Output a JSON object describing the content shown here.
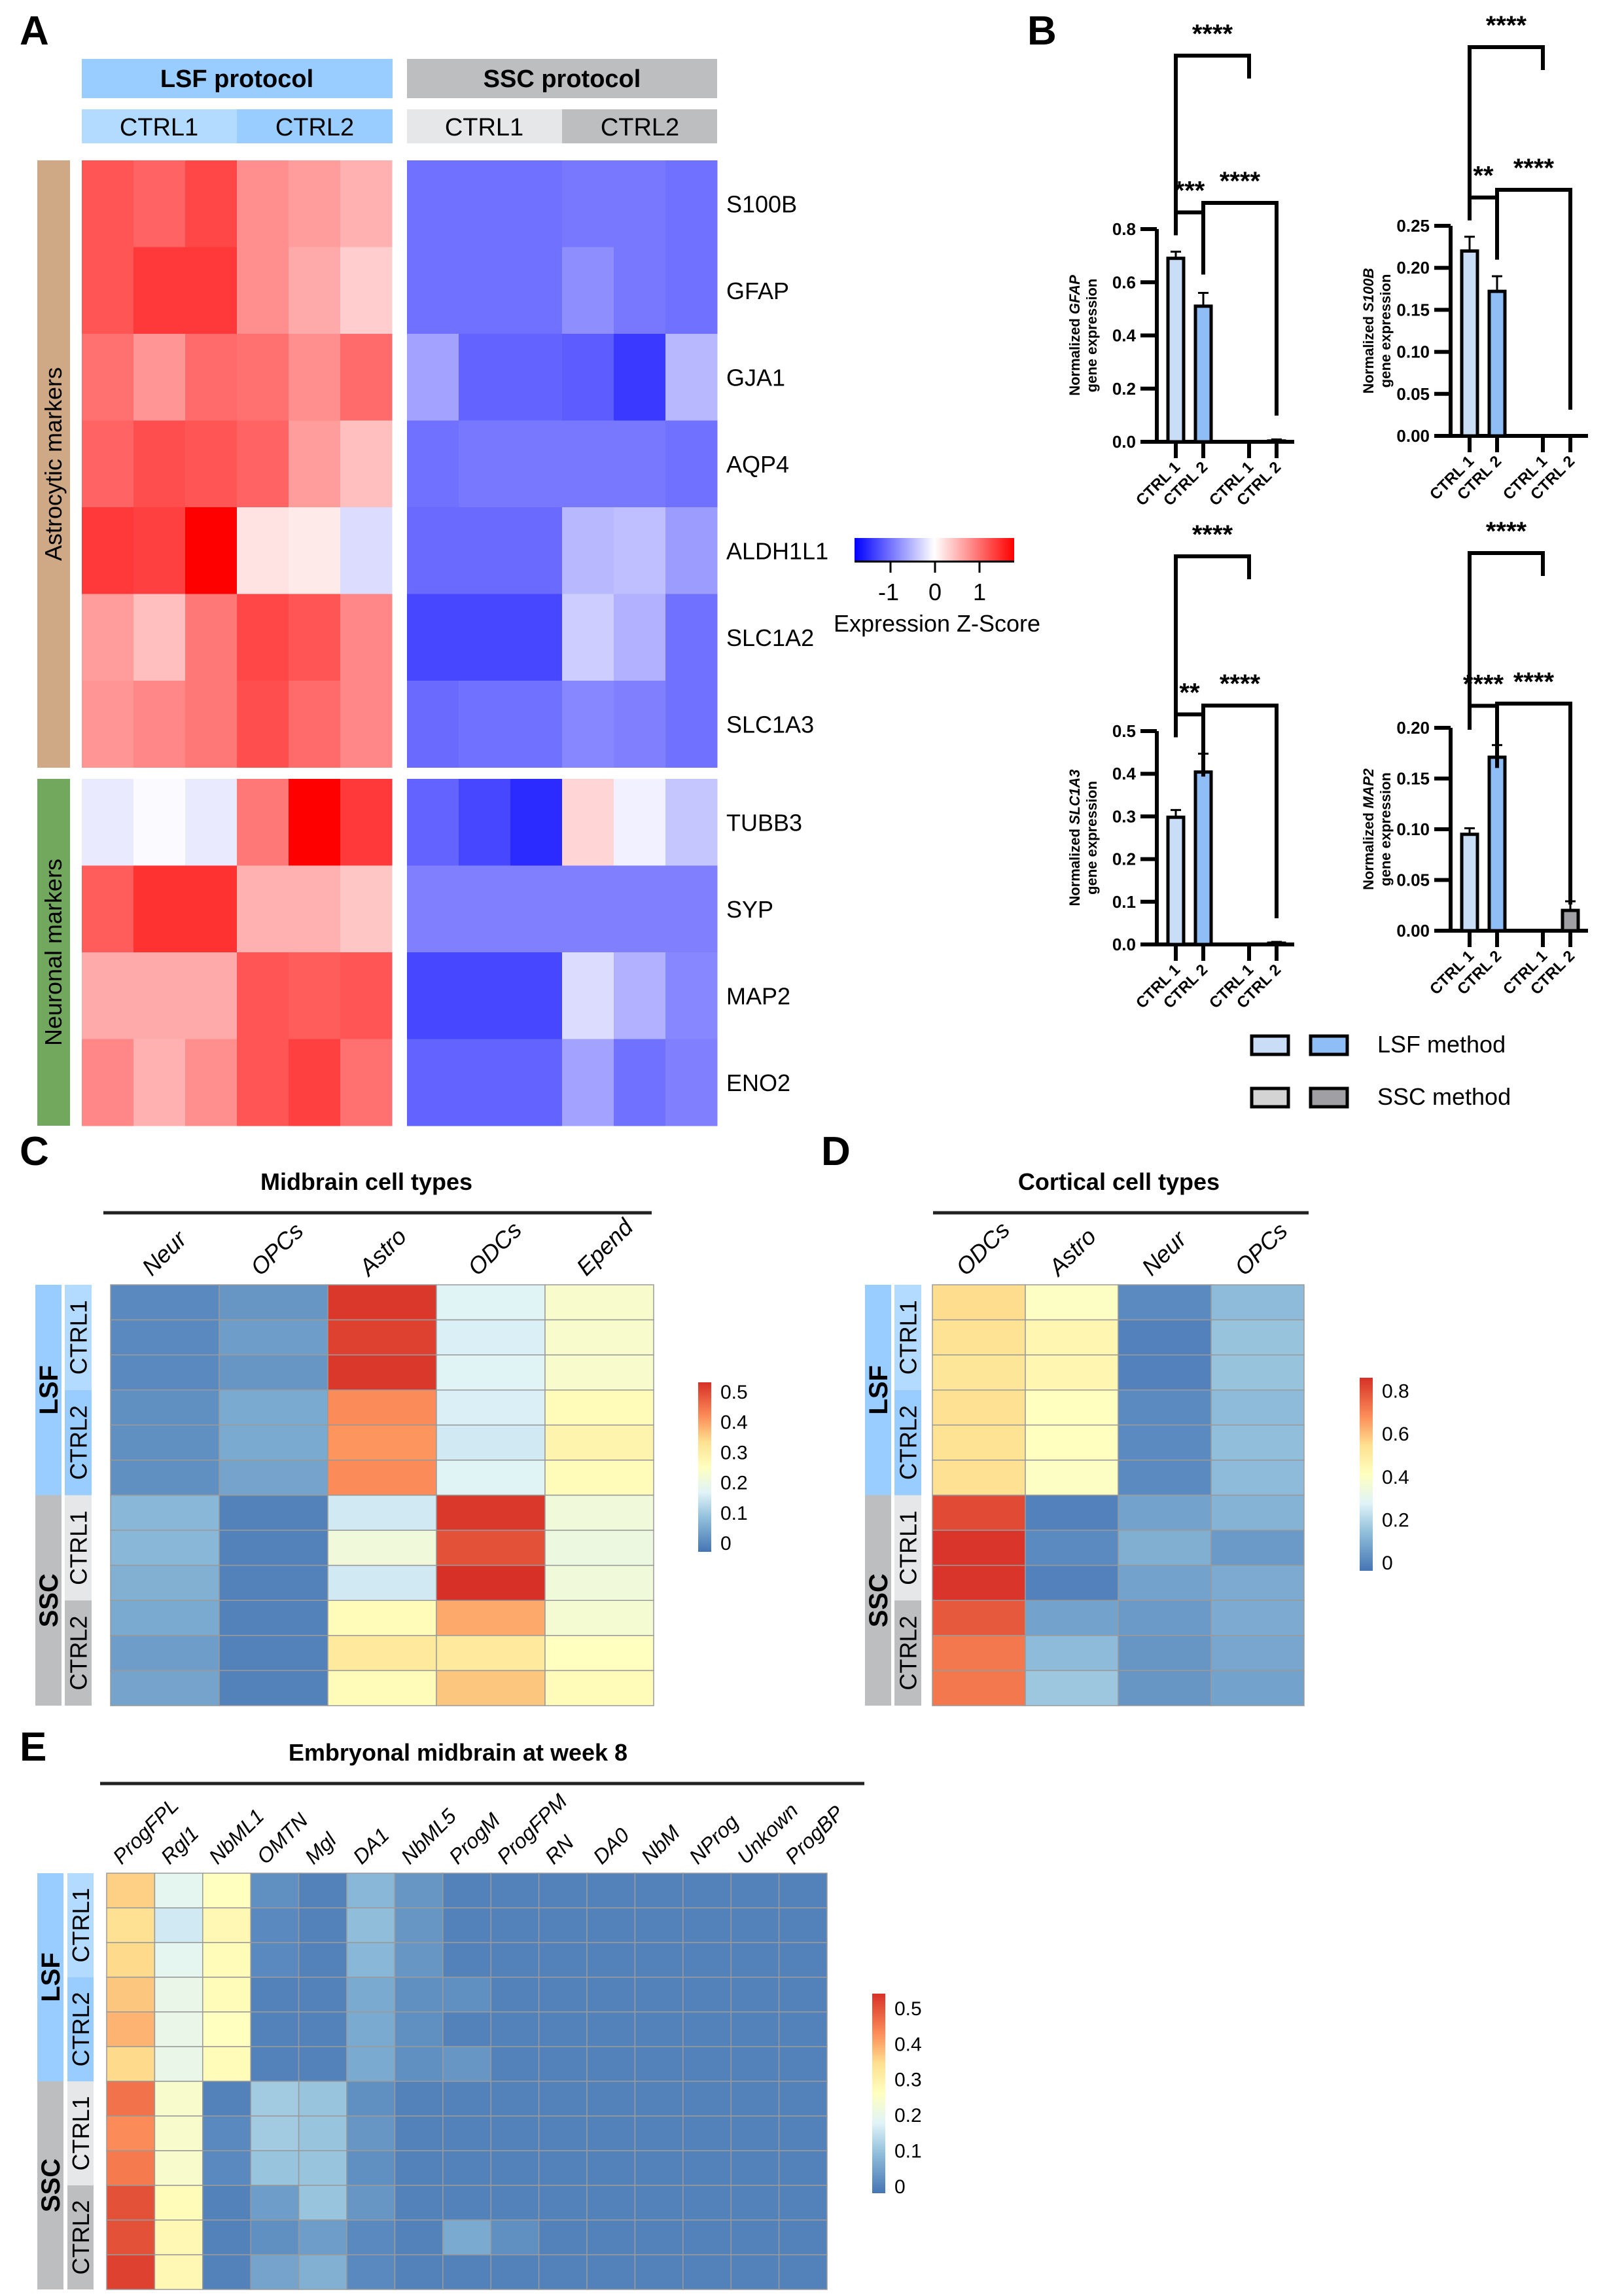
{
  "panels": {
    "A": {
      "letter": "A",
      "protocols": [
        {
          "label": "LSF protocol",
          "color": "#99ccff",
          "ctrl": [
            {
              "label": "CTRL1",
              "color": "#b3daff"
            },
            {
              "label": "CTRL2",
              "color": "#99ccff"
            }
          ]
        },
        {
          "label": "SSC protocol",
          "color": "#bdbec0",
          "ctrl": [
            {
              "label": "CTRL1",
              "color": "#e6e7e8"
            },
            {
              "label": "CTRL2",
              "color": "#bdbec0"
            }
          ]
        }
      ],
      "groups": [
        {
          "label": "Astrocytic markers",
          "color": "#cfa885",
          "genes": [
            "S100B",
            "GFAP",
            "GJA1",
            "AQP4",
            "ALDH1L1",
            "SLC1A2",
            "SLC1A3"
          ]
        },
        {
          "label": "Neuronal markers",
          "color": "#72a85e",
          "genes": [
            "TUBB3",
            "SYP",
            "MAP2",
            "ENO2"
          ]
        }
      ],
      "colorbar": {
        "title": "Expression Z-Score",
        "ticks": [
          "-1",
          "0",
          "1"
        ],
        "low": "#0000ff",
        "mid": "#ffffff",
        "high": "#ff0000"
      }
    },
    "B": {
      "letter": "B",
      "legend": [
        {
          "label": "LSF method",
          "colors": [
            "#c9ddf7",
            "#8fbdf6"
          ]
        },
        {
          "label": "SSC method",
          "colors": [
            "#d4d4d4",
            "#a0a0a4"
          ]
        }
      ]
    },
    "C": {
      "letter": "C",
      "title": "Midbrain cell types"
    },
    "D": {
      "letter": "D",
      "title": "Cortical cell types"
    },
    "E": {
      "letter": "E",
      "title": "Embryonal midbrain at week 8"
    }
  },
  "row_annotation": {
    "outer": [
      {
        "label": "LSF",
        "color": "#99ccff"
      },
      {
        "label": "SSC",
        "color": "#bdbec0"
      }
    ],
    "inner": [
      {
        "label": "CTRL1",
        "color": "#b3daff"
      },
      {
        "label": "CTRL2",
        "color": "#99ccff"
      },
      {
        "label": "CTRL1",
        "color": "#e6e7e8"
      },
      {
        "label": "CTRL2",
        "color": "#bdbec0"
      }
    ]
  },
  "chart_data": [
    {
      "id": "A",
      "type": "heatmap",
      "title": "",
      "columns_groups": [
        "LSF CTRL1",
        "LSF CTRL1",
        "LSF CTRL1",
        "LSF CTRL2",
        "LSF CTRL2",
        "LSF CTRL2",
        "SSC CTRL1",
        "SSC CTRL1",
        "SSC CTRL1",
        "SSC CTRL2",
        "SSC CTRL2",
        "SSC CTRL2"
      ],
      "rows": [
        "S100B",
        "GFAP",
        "GJA1",
        "AQP4",
        "ALDH1L1",
        "SLC1A2",
        "SLC1A3",
        "TUBB3",
        "SYP",
        "MAP2",
        "ENO2"
      ],
      "colorbar_label": "Expression Z-Score",
      "colorbar_range": [
        -1.8,
        1.8
      ],
      "values": [
        [
          1.2,
          1.1,
          1.3,
          0.8,
          0.7,
          0.55,
          -1.0,
          -1.0,
          -1.0,
          -0.95,
          -0.95,
          -1.0
        ],
        [
          1.2,
          1.4,
          1.4,
          0.8,
          0.6,
          0.35,
          -1.0,
          -1.0,
          -1.0,
          -0.8,
          -0.95,
          -1.0
        ],
        [
          1.0,
          0.75,
          1.05,
          1.0,
          0.8,
          1.05,
          -0.65,
          -1.1,
          -1.1,
          -1.15,
          -1.4,
          -0.5
        ],
        [
          1.1,
          1.25,
          1.2,
          1.1,
          0.7,
          0.45,
          -1.0,
          -0.95,
          -0.95,
          -0.95,
          -0.95,
          -1.0
        ],
        [
          1.4,
          1.35,
          1.8,
          0.2,
          0.15,
          -0.25,
          -1.05,
          -1.05,
          -1.05,
          -0.5,
          -0.45,
          -0.7
        ],
        [
          0.7,
          0.45,
          0.95,
          1.3,
          1.2,
          0.85,
          -1.3,
          -1.3,
          -1.3,
          -0.35,
          -0.55,
          -1.0
        ],
        [
          0.75,
          0.85,
          0.95,
          1.25,
          1.05,
          0.85,
          -1.05,
          -1.0,
          -1.0,
          -0.85,
          -0.9,
          -1.0
        ],
        [
          -0.15,
          -0.03,
          -0.15,
          0.95,
          1.8,
          1.4,
          -1.1,
          -1.3,
          -1.5,
          0.3,
          -0.1,
          -0.4
        ],
        [
          1.15,
          1.45,
          1.45,
          0.55,
          0.55,
          0.4,
          -0.9,
          -0.9,
          -0.9,
          -0.9,
          -0.9,
          -0.9
        ],
        [
          0.6,
          0.6,
          0.6,
          1.2,
          1.15,
          1.2,
          -1.3,
          -1.3,
          -1.3,
          -0.25,
          -0.55,
          -0.85
        ],
        [
          0.85,
          0.55,
          0.8,
          1.2,
          1.35,
          1.0,
          -1.1,
          -1.1,
          -1.1,
          -0.65,
          -1.0,
          -0.9
        ]
      ]
    },
    {
      "id": "B-GFAP",
      "type": "bar",
      "ylabel": "Normalized GFAP gene expression",
      "gene": "GFAP",
      "categories": [
        "CTRL 1",
        "CTRL 2",
        "CTRL 1",
        "CTRL 2"
      ],
      "groups": [
        "LSF",
        "LSF",
        "SSC",
        "SSC"
      ],
      "values": [
        0.69,
        0.51,
        0.0,
        0.003
      ],
      "errors": [
        0.025,
        0.05,
        0.0,
        0.006
      ],
      "ylim": [
        0,
        0.8
      ],
      "yticks": [
        "0.0",
        "0.2",
        "0.4",
        "0.6",
        "0.8"
      ],
      "significance": [
        {
          "from": 0,
          "to": 1,
          "label": "***"
        },
        {
          "from": 1,
          "to": 3,
          "label": "****"
        },
        {
          "from": 0,
          "to": 2,
          "label": "****"
        }
      ]
    },
    {
      "id": "B-S100B",
      "type": "bar",
      "ylabel": "Normalized S100B gene expression",
      "gene": "S100B",
      "categories": [
        "CTRL 1",
        "CTRL 2",
        "CTRL 1",
        "CTRL 2"
      ],
      "groups": [
        "LSF",
        "LSF",
        "SSC",
        "SSC"
      ],
      "values": [
        0.22,
        0.172,
        0.0,
        0.0
      ],
      "errors": [
        0.017,
        0.018,
        0.0,
        0.0
      ],
      "ylim": [
        0,
        0.25
      ],
      "yticks": [
        "0.00",
        "0.05",
        "0.10",
        "0.15",
        "0.20",
        "0.25"
      ],
      "significance": [
        {
          "from": 0,
          "to": 1,
          "label": "**"
        },
        {
          "from": 1,
          "to": 3,
          "label": "****"
        },
        {
          "from": 0,
          "to": 2,
          "label": "****"
        }
      ]
    },
    {
      "id": "B-SLC1A3",
      "type": "bar",
      "ylabel": "Normalized SLC1A3 gene expression",
      "gene": "SLC1A3",
      "categories": [
        "CTRL 1",
        "CTRL 2",
        "CTRL 1",
        "CTRL 2"
      ],
      "groups": [
        "LSF",
        "LSF",
        "SSC",
        "SSC"
      ],
      "values": [
        0.298,
        0.404,
        0.0,
        0.003
      ],
      "errors": [
        0.017,
        0.043,
        0.0,
        0.003
      ],
      "ylim": [
        0,
        0.5
      ],
      "yticks": [
        "0.0",
        "0.1",
        "0.2",
        "0.3",
        "0.4",
        "0.5"
      ],
      "significance": [
        {
          "from": 0,
          "to": 1,
          "label": "**"
        },
        {
          "from": 1,
          "to": 3,
          "label": "****"
        },
        {
          "from": 0,
          "to": 2,
          "label": "****"
        }
      ]
    },
    {
      "id": "B-MAP2",
      "type": "bar",
      "ylabel": "Normalized MAP2 gene expression",
      "gene": "MAP2",
      "categories": [
        "CTRL 1",
        "CTRL 2",
        "CTRL 1",
        "CTRL 2"
      ],
      "groups": [
        "LSF",
        "LSF",
        "SSC",
        "SSC"
      ],
      "values": [
        0.095,
        0.171,
        0.0,
        0.02
      ],
      "errors": [
        0.006,
        0.012,
        0.0,
        0.009
      ],
      "ylim": [
        0,
        0.2
      ],
      "yticks": [
        "0.00",
        "0.05",
        "0.10",
        "0.15",
        "0.20"
      ],
      "significance": [
        {
          "from": 0,
          "to": 1,
          "label": "****"
        },
        {
          "from": 1,
          "to": 3,
          "label": "****"
        },
        {
          "from": 0,
          "to": 2,
          "label": "****"
        }
      ]
    },
    {
      "id": "C",
      "type": "heatmap",
      "title": "Midbrain cell types",
      "columns": [
        "Neur",
        "OPCs",
        "Astro",
        "ODCs",
        "Epend"
      ],
      "rows_groups": [
        "LSF CTRL1",
        "LSF CTRL1",
        "LSF CTRL1",
        "LSF CTRL2",
        "LSF CTRL2",
        "LSF CTRL2",
        "SSC CTRL1",
        "SSC CTRL1",
        "SSC CTRL1",
        "SSC CTRL2",
        "SSC CTRL2",
        "SSC CTRL2"
      ],
      "colorbar_ticks": [
        "0",
        "0.1",
        "0.2",
        "0.3",
        "0.4",
        "0.5"
      ],
      "colorbar_range": [
        -0.03,
        0.53
      ],
      "values": [
        [
          0.0,
          0.02,
          0.52,
          0.17,
          0.23
        ],
        [
          0.0,
          0.03,
          0.51,
          0.16,
          0.23
        ],
        [
          0.0,
          0.02,
          0.52,
          0.17,
          0.23
        ],
        [
          0.01,
          0.05,
          0.42,
          0.16,
          0.26
        ],
        [
          0.01,
          0.05,
          0.41,
          0.15,
          0.28
        ],
        [
          0.01,
          0.04,
          0.42,
          0.17,
          0.26
        ],
        [
          0.07,
          -0.01,
          0.15,
          0.52,
          0.21
        ],
        [
          0.07,
          -0.01,
          0.21,
          0.49,
          0.2
        ],
        [
          0.06,
          -0.01,
          0.15,
          0.53,
          0.21
        ],
        [
          0.05,
          -0.01,
          0.26,
          0.39,
          0.22
        ],
        [
          0.03,
          -0.01,
          0.31,
          0.31,
          0.25
        ],
        [
          0.04,
          -0.01,
          0.26,
          0.36,
          0.26
        ]
      ]
    },
    {
      "id": "D",
      "type": "heatmap",
      "title": "Cortical cell types",
      "columns": [
        "ODCs",
        "Astro",
        "Neur",
        "OPCs"
      ],
      "rows_groups": [
        "LSF CTRL1",
        "LSF CTRL1",
        "LSF CTRL1",
        "LSF CTRL2",
        "LSF CTRL2",
        "LSF CTRL2",
        "SSC CTRL1",
        "SSC CTRL1",
        "SSC CTRL1",
        "SSC CTRL2",
        "SSC CTRL2",
        "SSC CTRL2"
      ],
      "colorbar_ticks": [
        "0",
        "0.2",
        "0.4",
        "0.6",
        "0.8"
      ],
      "colorbar_range": [
        -0.04,
        0.86
      ],
      "values": [
        [
          0.55,
          0.4,
          0.01,
          0.13
        ],
        [
          0.53,
          0.45,
          -0.01,
          0.15
        ],
        [
          0.52,
          0.45,
          -0.01,
          0.15
        ],
        [
          0.54,
          0.41,
          0.01,
          0.13
        ],
        [
          0.53,
          0.41,
          0.01,
          0.14
        ],
        [
          0.54,
          0.4,
          0.01,
          0.13
        ],
        [
          0.81,
          -0.01,
          0.07,
          0.11
        ],
        [
          0.85,
          0.01,
          0.1,
          0.05
        ],
        [
          0.85,
          -0.01,
          0.07,
          0.09
        ],
        [
          0.78,
          0.07,
          0.05,
          0.09
        ],
        [
          0.72,
          0.13,
          0.04,
          0.08
        ],
        [
          0.72,
          0.16,
          0.04,
          0.07
        ]
      ]
    },
    {
      "id": "E",
      "type": "heatmap",
      "title": "Embryonal midbrain at week 8",
      "columns": [
        "ProgFPL",
        "Rgl1",
        "NbML1",
        "OMTN",
        "Mgl",
        "DA1",
        "NbML5",
        "ProgM",
        "ProgFPM",
        "RN",
        "DA0",
        "NbM",
        "NProg",
        "Unkown",
        "ProgBP"
      ],
      "rows_groups": [
        "LSF CTRL1",
        "LSF CTRL1",
        "LSF CTRL1",
        "LSF CTRL2",
        "LSF CTRL2",
        "LSF CTRL2",
        "SSC CTRL1",
        "SSC CTRL1",
        "SSC CTRL1",
        "SSC CTRL2",
        "SSC CTRL2",
        "SSC CTRL2"
      ],
      "colorbar_ticks": [
        "0",
        "0.1",
        "0.2",
        "0.3",
        "0.4",
        "0.5"
      ],
      "colorbar_range": [
        -0.02,
        0.54
      ],
      "values": [
        [
          0.36,
          0.19,
          0.26,
          0.02,
          0.0,
          0.08,
          0.03,
          0.0,
          0.0,
          0.0,
          0.0,
          0.0,
          0.0,
          0.0,
          0.0
        ],
        [
          0.34,
          0.16,
          0.28,
          0.01,
          0.0,
          0.09,
          0.03,
          0.0,
          0.0,
          0.0,
          0.0,
          0.0,
          0.0,
          0.0,
          0.0
        ],
        [
          0.35,
          0.19,
          0.27,
          0.01,
          0.0,
          0.08,
          0.03,
          0.0,
          0.0,
          0.0,
          0.0,
          0.0,
          0.0,
          0.0,
          0.0
        ],
        [
          0.37,
          0.2,
          0.27,
          0.0,
          0.0,
          0.06,
          0.02,
          0.02,
          0.0,
          0.0,
          0.0,
          0.0,
          0.0,
          0.0,
          0.0
        ],
        [
          0.39,
          0.2,
          0.26,
          0.0,
          0.0,
          0.06,
          0.02,
          0.0,
          0.0,
          0.0,
          0.0,
          0.0,
          0.0,
          0.0,
          0.0
        ],
        [
          0.35,
          0.2,
          0.27,
          0.0,
          0.0,
          0.06,
          0.02,
          0.03,
          0.0,
          0.0,
          0.0,
          0.0,
          0.0,
          0.0,
          0.0
        ],
        [
          0.46,
          0.24,
          0.0,
          0.11,
          0.1,
          0.02,
          0.0,
          0.0,
          0.0,
          0.0,
          0.0,
          0.0,
          0.0,
          0.0,
          0.0
        ],
        [
          0.43,
          0.24,
          0.01,
          0.11,
          0.1,
          0.03,
          0.0,
          0.0,
          0.0,
          0.0,
          0.0,
          0.0,
          0.0,
          0.0,
          0.0
        ],
        [
          0.45,
          0.24,
          0.01,
          0.1,
          0.1,
          0.02,
          0.0,
          0.0,
          0.0,
          0.0,
          0.0,
          0.0,
          0.0,
          0.0,
          0.0
        ],
        [
          0.5,
          0.27,
          0.0,
          0.04,
          0.1,
          0.03,
          0.0,
          0.0,
          0.0,
          0.0,
          0.0,
          0.0,
          0.0,
          0.0,
          0.0
        ],
        [
          0.5,
          0.28,
          0.0,
          0.02,
          0.04,
          0.01,
          0.0,
          0.06,
          0.02,
          0.0,
          0.0,
          0.0,
          0.0,
          0.0,
          0.0
        ],
        [
          0.52,
          0.28,
          0.0,
          0.05,
          0.07,
          0.01,
          0.0,
          0.0,
          0.0,
          0.0,
          0.0,
          0.0,
          0.0,
          0.0,
          0.0
        ]
      ]
    }
  ]
}
